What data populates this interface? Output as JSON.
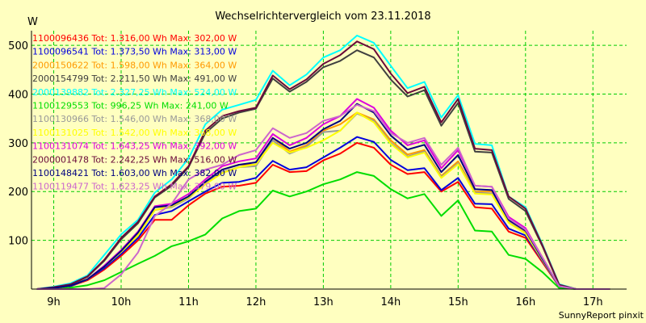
{
  "chart_data": {
    "type": "line",
    "title": "Wechselrichtervergleich vom 23.11.2018",
    "ylabel": "W",
    "footer": "SunnyReport pinxit",
    "xlim": [
      8.67,
      17.5
    ],
    "ylim": [
      0,
      530
    ],
    "x_ticks": [
      {
        "value": 9,
        "label": "9h"
      },
      {
        "value": 10,
        "label": "10h"
      },
      {
        "value": 11,
        "label": "11h"
      },
      {
        "value": 12,
        "label": "12h"
      },
      {
        "value": 13,
        "label": "13h"
      },
      {
        "value": 14,
        "label": "14h"
      },
      {
        "value": 15,
        "label": "15h"
      },
      {
        "value": 16,
        "label": "16h"
      },
      {
        "value": 17,
        "label": "17h"
      }
    ],
    "y_ticks": [
      {
        "value": 100,
        "label": "100"
      },
      {
        "value": 200,
        "label": "200"
      },
      {
        "value": 300,
        "label": "300"
      },
      {
        "value": 400,
        "label": "400"
      },
      {
        "value": 500,
        "label": "500"
      }
    ],
    "grid": true,
    "legend_position": "top-left",
    "x": [
      8.75,
      9.0,
      9.25,
      9.5,
      9.75,
      10.0,
      10.25,
      10.5,
      10.75,
      11.0,
      11.25,
      11.5,
      11.75,
      12.0,
      12.25,
      12.5,
      12.75,
      13.0,
      13.25,
      13.5,
      13.75,
      14.0,
      14.25,
      14.5,
      14.75,
      15.0,
      15.25,
      15.5,
      15.75,
      16.0,
      16.25,
      16.5,
      16.75,
      17.0,
      17.25
    ],
    "series": [
      {
        "name": "1100096436 Tot: 1.316,00 Wh Max: 302,00 W",
        "color": "#ff0000",
        "values": [
          0,
          2,
          6,
          18,
          40,
          68,
          100,
          142,
          142,
          172,
          196,
          210,
          212,
          218,
          255,
          240,
          242,
          264,
          278,
          300,
          290,
          255,
          236,
          240,
          200,
          220,
          168,
          165,
          118,
          105,
          55,
          5,
          0,
          0,
          0
        ]
      },
      {
        "name": "1100096541 Tot: 1.373,50 Wh Max: 313,00 W",
        "color": "#0000dd",
        "values": [
          0,
          2,
          6,
          20,
          43,
          72,
          105,
          152,
          160,
          180,
          200,
          218,
          220,
          228,
          263,
          245,
          250,
          270,
          290,
          312,
          302,
          265,
          244,
          248,
          203,
          228,
          175,
          174,
          124,
          110,
          58,
          5,
          0,
          0,
          0
        ]
      },
      {
        "name": "2000150622 Tot: 1.598,00 Wh Max: 364,00 W",
        "color": "#ff9900",
        "values": [
          0,
          2,
          7,
          20,
          46,
          78,
          115,
          168,
          170,
          188,
          220,
          245,
          255,
          255,
          310,
          282,
          295,
          325,
          338,
          362,
          348,
          305,
          276,
          285,
          232,
          262,
          200,
          200,
          140,
          118,
          62,
          6,
          0,
          0,
          0
        ]
      },
      {
        "name": "2000154799 Tot: 2.211,50 Wh Max: 491,00 W",
        "color": "#404040",
        "values": [
          0,
          3,
          9,
          25,
          58,
          102,
          135,
          188,
          212,
          250,
          320,
          350,
          362,
          370,
          432,
          405,
          425,
          455,
          468,
          490,
          475,
          430,
          395,
          408,
          335,
          382,
          282,
          280,
          185,
          160,
          88,
          8,
          0,
          0,
          0
        ]
      },
      {
        "name": "2000139882 Tot: 2.327,25 Wh Max: 524,00 W",
        "color": "#00ffff",
        "values": [
          0,
          5,
          12,
          28,
          70,
          112,
          142,
          198,
          225,
          268,
          338,
          368,
          378,
          388,
          448,
          418,
          440,
          475,
          490,
          520,
          505,
          458,
          412,
          425,
          352,
          398,
          298,
          295,
          190,
          168,
          92,
          10,
          0,
          0,
          0
        ]
      },
      {
        "name": "1100129553 Tot: 996,25 Wh Max: 241,00 W",
        "color": "#00dd00",
        "values": [
          0,
          1,
          3,
          8,
          18,
          35,
          52,
          68,
          88,
          98,
          112,
          145,
          160,
          165,
          202,
          190,
          200,
          215,
          225,
          240,
          232,
          205,
          186,
          195,
          150,
          182,
          120,
          118,
          70,
          62,
          35,
          2,
          0,
          0,
          0
        ]
      },
      {
        "name": "1100130966 Tot: 1.546,00 Wh Max: 368,00 W",
        "color": "#999999",
        "values": [
          0,
          2,
          7,
          20,
          46,
          76,
          110,
          162,
          168,
          186,
          218,
          240,
          250,
          252,
          305,
          278,
          292,
          322,
          325,
          360,
          345,
          300,
          272,
          282,
          230,
          258,
          198,
          196,
          138,
          115,
          60,
          6,
          0,
          0,
          0
        ]
      },
      {
        "name": "1100131025 Tot: 1.542,00 Wh Max: 368,00 W",
        "color": "#ffff00",
        "values": [
          0,
          2,
          7,
          20,
          46,
          76,
          110,
          162,
          170,
          188,
          215,
          238,
          250,
          256,
          300,
          280,
          290,
          305,
          325,
          362,
          342,
          298,
          270,
          280,
          228,
          256,
          196,
          194,
          136,
          114,
          60,
          6,
          0,
          0,
          0
        ]
      },
      {
        "name": "1100131074 Tot: 1.643,25 Wh Max: 392,00 W",
        "color": "#dd00dd",
        "values": [
          0,
          2,
          7,
          20,
          48,
          80,
          118,
          170,
          175,
          195,
          225,
          252,
          262,
          268,
          318,
          295,
          310,
          338,
          355,
          390,
          372,
          325,
          295,
          305,
          248,
          285,
          212,
          210,
          148,
          125,
          65,
          6,
          0,
          0,
          0
        ]
      },
      {
        "name": "2000001478 Tot: 2.242,25 Wh Max: 516,00 W",
        "color": "#6a0a3a",
        "values": [
          0,
          4,
          10,
          26,
          60,
          105,
          138,
          190,
          215,
          252,
          325,
          355,
          365,
          372,
          438,
          410,
          430,
          462,
          480,
          508,
          492,
          442,
          402,
          415,
          342,
          390,
          288,
          285,
          190,
          165,
          90,
          9,
          0,
          0,
          0
        ]
      },
      {
        "name": "1100148421 Tot: 1.603,00 Wh Max: 382,00 W",
        "color": "#000080",
        "values": [
          0,
          2,
          7,
          20,
          46,
          78,
          116,
          168,
          172,
          190,
          220,
          245,
          255,
          260,
          310,
          288,
          300,
          328,
          345,
          380,
          362,
          315,
          286,
          296,
          240,
          275,
          205,
          203,
          142,
          120,
          62,
          6,
          0,
          0,
          0
        ]
      },
      {
        "name": "1100119477 Tot: 1.623,25 Wh Max: 379,00 W",
        "color": "#cc66cc",
        "values": [
          0,
          0,
          0,
          0,
          2,
          30,
          75,
          150,
          175,
          225,
          245,
          255,
          275,
          285,
          330,
          310,
          320,
          345,
          355,
          378,
          365,
          320,
          300,
          310,
          255,
          290,
          212,
          210,
          145,
          122,
          65,
          6,
          0,
          0,
          0
        ]
      }
    ]
  }
}
